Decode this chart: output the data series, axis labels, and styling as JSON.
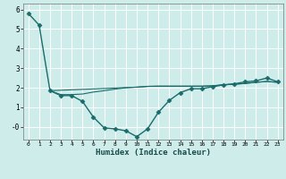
{
  "xlabel": "Humidex (Indice chaleur)",
  "bg_color": "#cdecea",
  "grid_color": "#ffffff",
  "line_color": "#1a6b6b",
  "x_ticks": [
    0,
    1,
    2,
    3,
    4,
    5,
    6,
    7,
    8,
    9,
    10,
    11,
    12,
    13,
    14,
    15,
    16,
    17,
    18,
    19,
    20,
    21,
    22,
    23
  ],
  "ylim": [
    -0.65,
    6.3
  ],
  "xlim": [
    -0.5,
    23.5
  ],
  "yticks": [
    0,
    1,
    2,
    3,
    4,
    5,
    6
  ],
  "ytick_labels": [
    "-0",
    "1",
    "2",
    "3",
    "4",
    "5",
    "6"
  ],
  "series": [
    {
      "x": [
        0,
        1,
        2,
        3,
        4,
        5,
        6,
        7,
        8,
        9,
        10,
        11,
        12,
        13,
        14,
        15,
        16,
        17,
        18,
        19,
        20,
        21,
        22,
        23
      ],
      "y": [
        5.8,
        5.2,
        1.85,
        1.6,
        1.6,
        1.3,
        0.5,
        -0.05,
        -0.1,
        -0.2,
        -0.5,
        -0.1,
        0.75,
        1.35,
        1.75,
        1.95,
        1.95,
        2.05,
        2.15,
        2.2,
        2.3,
        2.35,
        2.5,
        2.3
      ],
      "marker": "D",
      "markersize": 2.5,
      "linewidth": 1.0
    },
    {
      "x": [
        2,
        3,
        4,
        5,
        6,
        7,
        8,
        9,
        10,
        11,
        12,
        13,
        14,
        15,
        16,
        17,
        18,
        19,
        20,
        21,
        22,
        23
      ],
      "y": [
        1.85,
        1.65,
        1.65,
        1.68,
        1.78,
        1.85,
        1.93,
        2.0,
        2.03,
        2.07,
        2.08,
        2.08,
        2.08,
        2.08,
        2.08,
        2.1,
        2.15,
        2.18,
        2.22,
        2.28,
        2.32,
        2.28
      ],
      "marker": null,
      "linewidth": 0.8
    },
    {
      "x": [
        2,
        10,
        11,
        12,
        13,
        14,
        15,
        16,
        17,
        18,
        19,
        20,
        21,
        22,
        23
      ],
      "y": [
        1.85,
        2.03,
        2.07,
        2.08,
        2.08,
        2.08,
        2.08,
        2.08,
        2.1,
        2.15,
        2.18,
        2.22,
        2.28,
        2.32,
        2.28
      ],
      "marker": null,
      "linewidth": 0.8
    }
  ]
}
